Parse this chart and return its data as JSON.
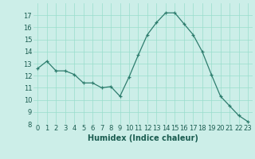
{
  "x": [
    0,
    1,
    2,
    3,
    4,
    5,
    6,
    7,
    8,
    9,
    10,
    11,
    12,
    13,
    14,
    15,
    16,
    17,
    18,
    19,
    20,
    21,
    22,
    23
  ],
  "y": [
    12.6,
    13.2,
    12.4,
    12.4,
    12.1,
    11.4,
    11.4,
    11.0,
    11.1,
    10.3,
    11.9,
    13.7,
    15.4,
    16.4,
    17.2,
    17.2,
    16.3,
    15.4,
    14.0,
    12.1,
    10.3,
    9.5,
    8.7,
    8.2
  ],
  "xlabel": "Humidex (Indice chaleur)",
  "ylim": [
    8,
    18
  ],
  "xlim": [
    -0.5,
    23.5
  ],
  "yticks": [
    8,
    9,
    10,
    11,
    12,
    13,
    14,
    15,
    16,
    17
  ],
  "xticks": [
    0,
    1,
    2,
    3,
    4,
    5,
    6,
    7,
    8,
    9,
    10,
    11,
    12,
    13,
    14,
    15,
    16,
    17,
    18,
    19,
    20,
    21,
    22,
    23
  ],
  "line_color": "#2e7d6e",
  "marker": "+",
  "bg_color": "#cceee8",
  "grid_color": "#99ddcc",
  "label_fontsize": 7,
  "tick_fontsize": 6,
  "tick_color": "#1a5c50"
}
